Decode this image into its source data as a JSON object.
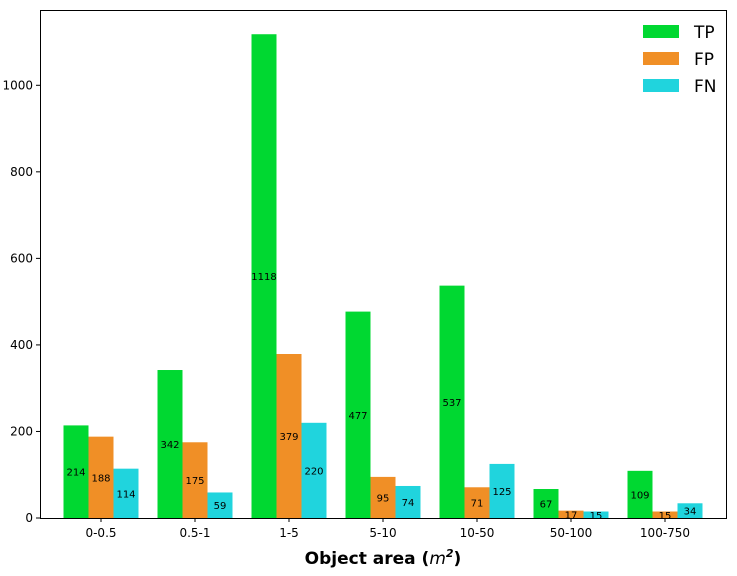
{
  "chart_data": {
    "type": "bar",
    "categories": [
      "0-0.5",
      "0.5-1",
      "1-5",
      "5-10",
      "10-50",
      "50-100",
      "100-750"
    ],
    "series": [
      {
        "name": "TP",
        "color": "#00d831",
        "values": [
          214,
          342,
          1118,
          477,
          537,
          67,
          109
        ]
      },
      {
        "name": "FP",
        "color": "#f08f26",
        "values": [
          188,
          175,
          379,
          95,
          71,
          17,
          15
        ]
      },
      {
        "name": "FN",
        "color": "#20d4dd",
        "values": [
          114,
          59,
          220,
          74,
          125,
          15,
          34
        ]
      }
    ],
    "xlabel": {
      "prefix": "Object area (",
      "var": "m",
      "sup": "2",
      "suffix": ")"
    },
    "ylabel": "",
    "ylim": [
      0,
      1174
    ],
    "yticks": [
      0,
      200,
      400,
      600,
      800,
      1000
    ],
    "yticks_labels": [
      "0",
      "200",
      "400",
      "600",
      "800",
      "1000"
    ],
    "legend_position": "top-right",
    "grid": false,
    "data_labels": true
  }
}
